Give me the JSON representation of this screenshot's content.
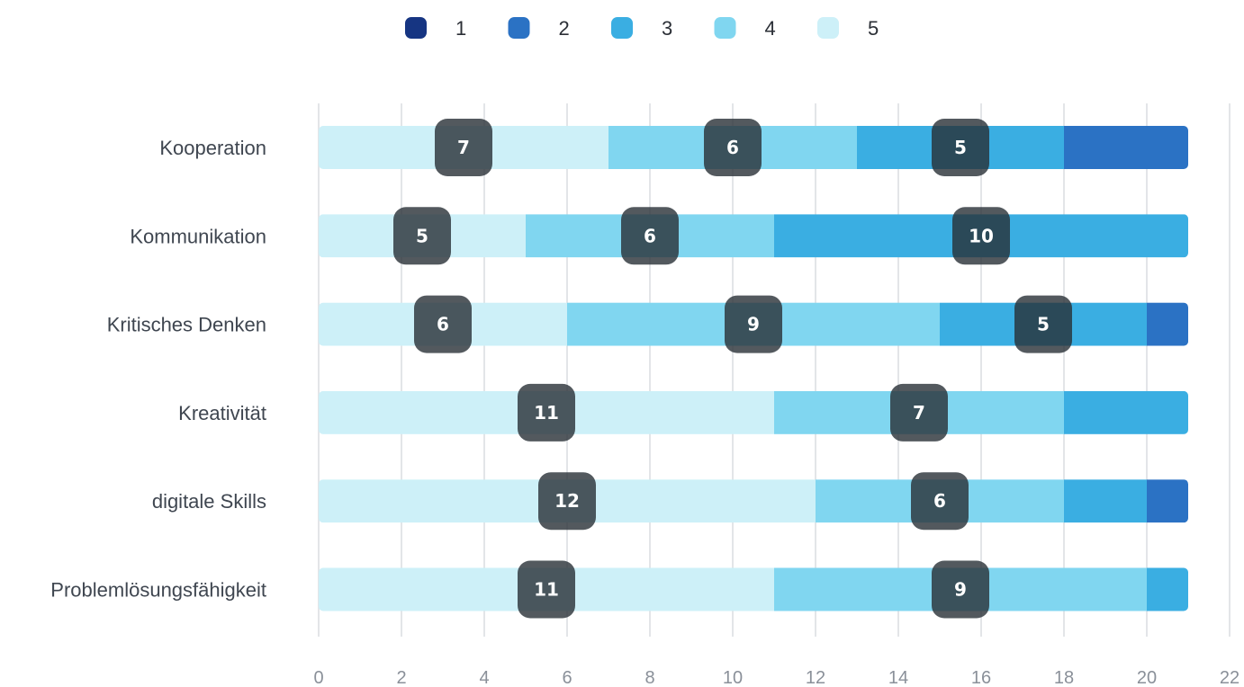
{
  "chart_data": {
    "type": "bar",
    "orientation": "horizontal",
    "stacked": true,
    "categories": [
      "Kooperation",
      "Kommunikation",
      "Kritisches Denken",
      "Kreativität",
      "digitale Skills",
      "Problemlösungsfähigkeit"
    ],
    "series": [
      {
        "name": "5",
        "color": "#cdf0f8",
        "values": [
          7,
          5,
          6,
          11,
          12,
          11
        ]
      },
      {
        "name": "4",
        "color": "#80d6f0",
        "values": [
          6,
          6,
          9,
          7,
          6,
          9
        ]
      },
      {
        "name": "3",
        "color": "#3aaee2",
        "values": [
          5,
          10,
          5,
          3,
          2,
          1
        ]
      },
      {
        "name": "2",
        "color": "#2b72c4",
        "values": [
          3,
          0,
          1,
          0,
          1,
          0
        ]
      },
      {
        "name": "1",
        "color": "#163582",
        "values": [
          0,
          0,
          0,
          0,
          0,
          0
        ]
      }
    ],
    "legend_order": [
      "1",
      "2",
      "3",
      "4",
      "5"
    ],
    "legend_position": "top-center",
    "xlim": [
      0,
      22
    ],
    "x_ticks": [
      0,
      2,
      4,
      6,
      8,
      10,
      12,
      14,
      16,
      18,
      20,
      22
    ],
    "grid": true,
    "data_labels_min_value": 5,
    "title": "",
    "xlabel": "",
    "ylabel": ""
  }
}
